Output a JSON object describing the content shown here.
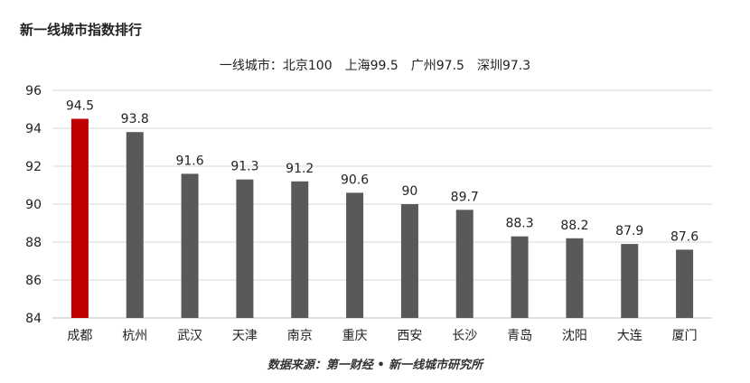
{
  "chart_data": {
    "type": "bar",
    "title": "新一线城市指数排行",
    "subtitle": "一线城市：北京100　上海99.5　广州97.5　深圳97.3",
    "source": "数据来源：第一财经 • 新一线城市研究所",
    "categories": [
      "成都",
      "杭州",
      "武汉",
      "天津",
      "南京",
      "重庆",
      "西安",
      "长沙",
      "青岛",
      "沈阳",
      "大连",
      "厦门"
    ],
    "values": [
      94.5,
      93.8,
      91.6,
      91.3,
      91.2,
      90.6,
      90,
      89.7,
      88.3,
      88.2,
      87.9,
      87.6
    ],
    "value_labels": [
      "94.5",
      "93.8",
      "91.6",
      "91.3",
      "91.2",
      "90.6",
      "90",
      "89.7",
      "88.3",
      "88.2",
      "87.9",
      "87.6"
    ],
    "ylim": [
      84,
      96
    ],
    "yticks": [
      84,
      86,
      88,
      90,
      92,
      94,
      96
    ],
    "grid": true,
    "colors": {
      "highlight": "#c00000",
      "default": "#595959",
      "grid": "#d9d9d9"
    },
    "highlight_index": 0
  }
}
